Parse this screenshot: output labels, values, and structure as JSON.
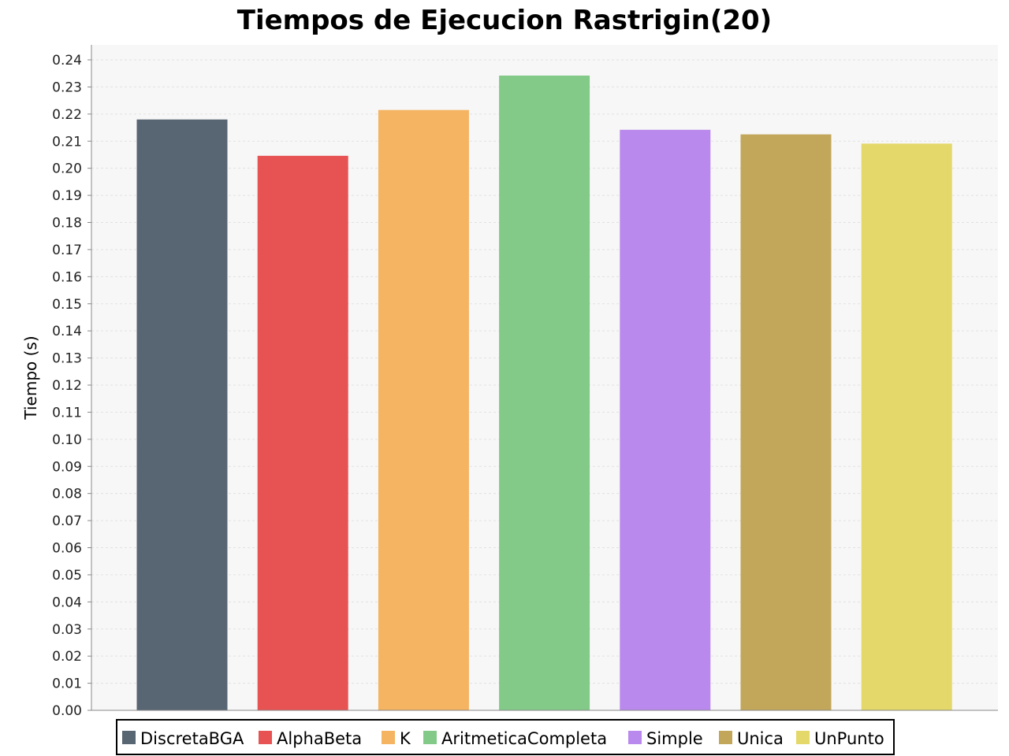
{
  "chart_data": {
    "type": "bar",
    "title": "Tiempos de Ejecucion Rastrigin(20)",
    "xlabel": "",
    "ylabel": "Tiempo (s)",
    "ylim": [
      0,
      0.24
    ],
    "ytick_step": 0.01,
    "ytick_decimals": 2,
    "grid": true,
    "legend_position": "bottom",
    "categories": [
      "DiscretaBGA",
      "AlphaBeta",
      "K",
      "AritmeticaCompleta",
      "Simple",
      "Unica",
      "UnPunto"
    ],
    "values": [
      0.218,
      0.2046,
      0.2215,
      0.2342,
      0.2142,
      0.2125,
      0.2091
    ],
    "colors": [
      "#586573",
      "#e75253",
      "#f5b461",
      "#83ca89",
      "#ba89ed",
      "#c2a75a",
      "#e3d869"
    ]
  }
}
